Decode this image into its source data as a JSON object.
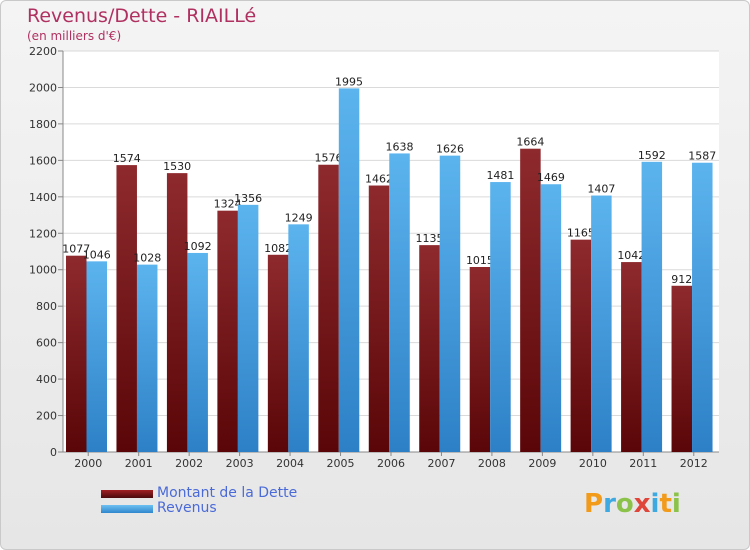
{
  "title": "Revenus/Dette - RIAILLé",
  "subtitle": "(en milliers d'€)",
  "logo_text": "Proxiti",
  "chart_data": {
    "type": "bar",
    "title": "Revenus/Dette - RIAILLé",
    "subtitle": "(en milliers d'€)",
    "categories": [
      "2000",
      "2001",
      "2002",
      "2003",
      "2004",
      "2005",
      "2006",
      "2007",
      "2008",
      "2009",
      "2010",
      "2011",
      "2012"
    ],
    "series": [
      {
        "name": "Montant de la Dette",
        "color": "#7a1518",
        "values": [
          1077,
          1574,
          1530,
          1324,
          1082,
          1576,
          1462,
          1135,
          1015,
          1664,
          1165,
          1042,
          912
        ],
        "labels": [
          "1077",
          "1574",
          "1530",
          "1324",
          "1082",
          "1576",
          "1462",
          "1135",
          "1015",
          "1664",
          "1165",
          "1042",
          "912"
        ]
      },
      {
        "name": "Revenus",
        "color": "#4fa8e6",
        "values": [
          1046,
          1028,
          1092,
          1356,
          1249,
          1995,
          1638,
          1626,
          1481,
          1469,
          1407,
          1592,
          1587
        ],
        "labels": [
          "1046",
          "1028",
          "1092",
          "1356",
          "1249",
          "1995",
          "1638",
          "1626",
          "1481",
          "1469",
          "1407",
          "1592",
          "1587"
        ]
      }
    ],
    "y_ticks": [
      "0",
      "200",
      "400",
      "600",
      "800",
      "1000",
      "1200",
      "1400",
      "1600",
      "1800",
      "2000",
      "2200"
    ],
    "ylim": [
      0,
      2200
    ],
    "grid": true,
    "legend_placement": "bottom-left"
  }
}
